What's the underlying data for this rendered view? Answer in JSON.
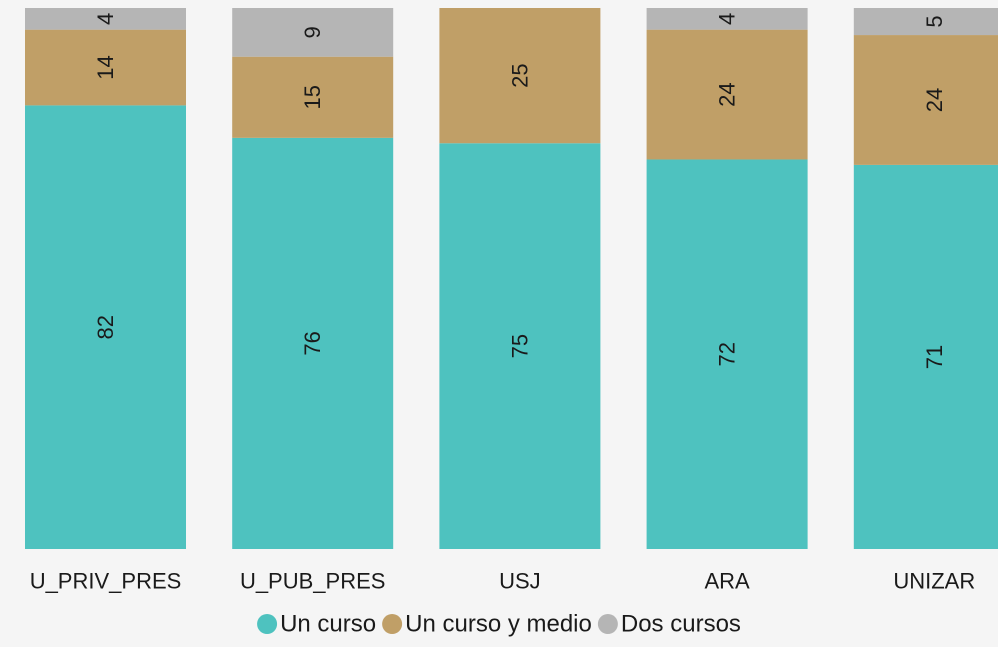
{
  "chart_data": {
    "type": "bar",
    "stacked": true,
    "percent_stacked": true,
    "categories": [
      "U_PRIV_PRES",
      "U_PUB_PRES",
      "USJ",
      "ARA",
      "UNIZAR"
    ],
    "series": [
      {
        "name": "Un curso",
        "color": "#4ec2bf",
        "values": [
          82,
          76,
          75,
          72,
          71
        ]
      },
      {
        "name": "Un curso y medio",
        "color": "#c09f67",
        "values": [
          14,
          15,
          25,
          24,
          24
        ]
      },
      {
        "name": "Dos cursos",
        "color": "#b5b5b5",
        "values": [
          4,
          9,
          0,
          4,
          5
        ]
      }
    ],
    "ylim": [
      0,
      100
    ],
    "grid": false,
    "legend_position": "bottom",
    "data_labels": "rotated-inside"
  }
}
